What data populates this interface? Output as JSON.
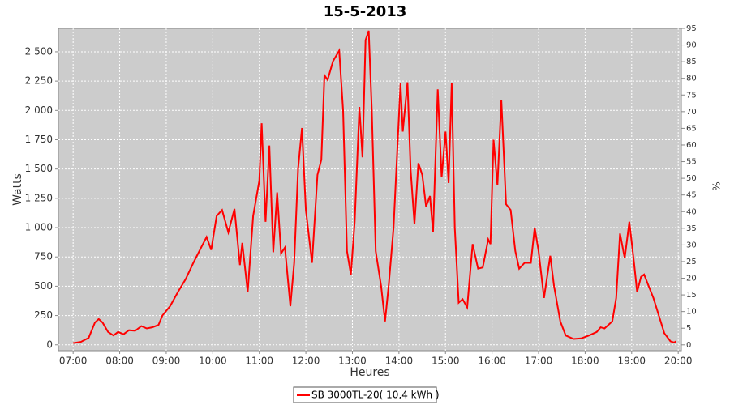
{
  "chart_data": {
    "type": "line",
    "title": "15-5-2013",
    "x_label": "Heures",
    "y_label": "Watts",
    "y2_label": "%",
    "x": [
      "07:00",
      "07:10",
      "07:20",
      "07:28",
      "07:33",
      "07:38",
      "07:45",
      "07:52",
      "07:58",
      "08:05",
      "08:12",
      "08:20",
      "08:28",
      "08:35",
      "08:42",
      "08:50",
      "08:55",
      "09:05",
      "09:15",
      "09:25",
      "09:35",
      "09:45",
      "09:52",
      "09:58",
      "10:05",
      "10:12",
      "10:20",
      "10:28",
      "10:35",
      "10:38",
      "10:45",
      "10:52",
      "11:00",
      "11:03",
      "11:08",
      "11:13",
      "11:18",
      "11:23",
      "11:28",
      "11:33",
      "11:40",
      "11:45",
      "11:50",
      "11:55",
      "12:00",
      "12:08",
      "12:15",
      "12:20",
      "12:24",
      "12:28",
      "12:35",
      "12:43",
      "12:48",
      "12:53",
      "12:58",
      "13:03",
      "13:09",
      "13:13",
      "13:17",
      "13:21",
      "13:25",
      "13:30",
      "13:37",
      "13:42",
      "13:47",
      "13:53",
      "14:02",
      "14:05",
      "14:11",
      "14:15",
      "14:20",
      "14:25",
      "14:30",
      "14:35",
      "14:40",
      "14:44",
      "14:50",
      "14:55",
      "15:00",
      "15:04",
      "15:08",
      "15:12",
      "15:17",
      "15:22",
      "15:28",
      "15:35",
      "15:42",
      "15:48",
      "15:55",
      "15:58",
      "16:02",
      "16:07",
      "16:12",
      "16:18",
      "16:24",
      "16:30",
      "16:35",
      "16:42",
      "16:50",
      "16:55",
      "17:00",
      "17:07",
      "17:15",
      "17:20",
      "17:28",
      "17:35",
      "17:45",
      "17:55",
      "18:05",
      "18:15",
      "18:20",
      "18:25",
      "18:35",
      "18:40",
      "18:45",
      "18:51",
      "18:57",
      "19:03",
      "19:07",
      "19:12",
      "19:16",
      "19:22",
      "19:28",
      "19:35",
      "19:42",
      "19:50",
      "19:55",
      "19:57"
    ],
    "series": [
      {
        "name": "SB 3000TL-20( 10,4 kWh )",
        "color": "#ff0000",
        "values": [
          15,
          25,
          60,
          190,
          220,
          190,
          110,
          80,
          110,
          90,
          125,
          120,
          160,
          140,
          150,
          170,
          250,
          330,
          450,
          560,
          700,
          830,
          920,
          810,
          1100,
          1150,
          960,
          1160,
          680,
          870,
          450,
          1100,
          1400,
          1890,
          1050,
          1700,
          790,
          1300,
          780,
          830,
          330,
          700,
          1500,
          1850,
          1150,
          700,
          1450,
          1580,
          2300,
          2260,
          2420,
          2510,
          2000,
          800,
          600,
          1050,
          2030,
          1600,
          2600,
          2680,
          2000,
          800,
          500,
          200,
          520,
          1000,
          2230,
          1820,
          2240,
          1500,
          1030,
          1550,
          1450,
          1180,
          1270,
          960,
          2180,
          1430,
          1820,
          1380,
          2230,
          1000,
          360,
          390,
          320,
          860,
          650,
          660,
          900,
          860,
          1750,
          1360,
          2090,
          1200,
          1150,
          800,
          650,
          700,
          700,
          1000,
          800,
          400,
          760,
          500,
          200,
          80,
          50,
          55,
          80,
          110,
          150,
          140,
          200,
          400,
          950,
          740,
          1050,
          700,
          450,
          580,
          600,
          500,
          400,
          250,
          100,
          30,
          20,
          30
        ]
      }
    ],
    "xlim": [
      "06:41",
      "20:04"
    ],
    "xticks": [
      "07:00",
      "08:00",
      "09:00",
      "10:00",
      "11:00",
      "12:00",
      "13:00",
      "14:00",
      "15:00",
      "16:00",
      "17:00",
      "18:00",
      "19:00",
      "20:00"
    ],
    "ylim": [
      -50,
      2700
    ],
    "yticks": [
      0,
      250,
      500,
      750,
      {
        "value": 1000,
        "label": "1 000"
      },
      {
        "value": 1250,
        "label": "1 250"
      },
      {
        "value": 1500,
        "label": "1 500"
      },
      {
        "value": 1750,
        "label": "1 750"
      },
      {
        "value": 2000,
        "label": "2 000"
      },
      {
        "value": 2250,
        "label": "2 250"
      },
      {
        "value": 2500,
        "label": "2 500"
      }
    ],
    "y2lim": [
      -1.75,
      95
    ],
    "y2ticks": [
      0,
      5,
      10,
      15,
      20,
      25,
      30,
      35,
      40,
      45,
      50,
      55,
      60,
      65,
      70,
      75,
      80,
      85,
      90,
      95
    ],
    "grid": true,
    "legend": "bottom"
  }
}
